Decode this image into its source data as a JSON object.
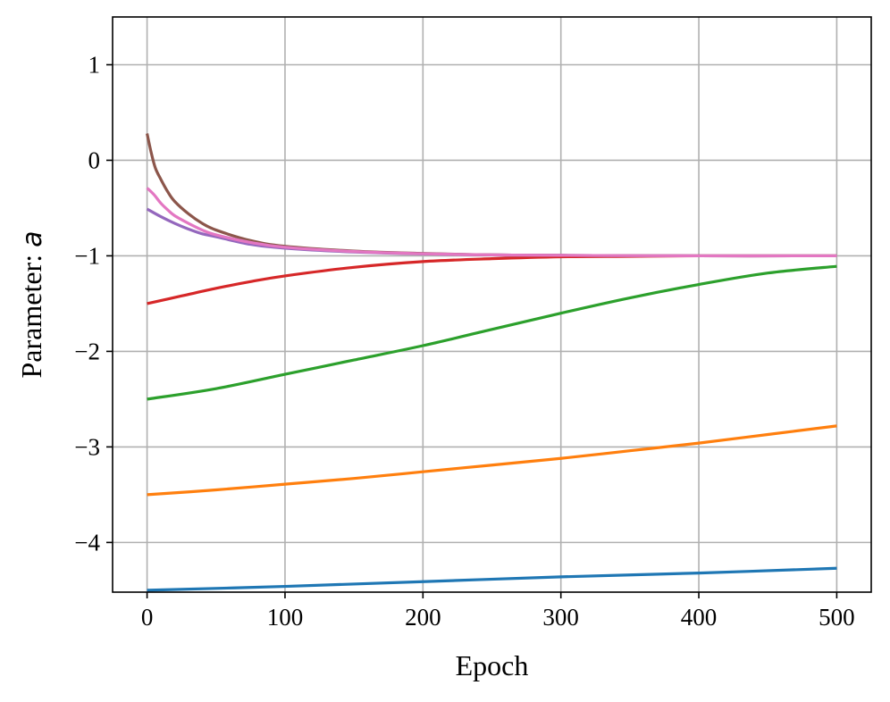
{
  "chart_data": {
    "type": "line",
    "title": "",
    "xlabel": "Epoch",
    "ylabel_prefix": "Parameter: ",
    "ylabel_symbol": "a",
    "xlim": [
      -25,
      525
    ],
    "ylim": [
      -4.52,
      1.5
    ],
    "grid": true,
    "x_ticks": [
      0,
      100,
      200,
      300,
      400,
      500
    ],
    "x_tick_labels": [
      "0",
      "100",
      "200",
      "300",
      "400",
      "500"
    ],
    "y_ticks": [
      1,
      0,
      -1,
      -2,
      -3,
      -4
    ],
    "y_tick_labels": [
      "1",
      "0",
      "−1",
      "−2",
      "−3",
      "−4"
    ],
    "series": [
      {
        "color": "#1f77b4",
        "x": [
          0,
          100,
          200,
          300,
          400,
          500
        ],
        "y": [
          -4.5,
          -4.46,
          -4.41,
          -4.36,
          -4.32,
          -4.27
        ]
      },
      {
        "color": "#ff7f0e",
        "x": [
          0,
          50,
          100,
          150,
          200,
          250,
          300,
          350,
          400,
          450,
          500
        ],
        "y": [
          -3.5,
          -3.45,
          -3.39,
          -3.33,
          -3.26,
          -3.19,
          -3.12,
          -3.04,
          -2.96,
          -2.87,
          -2.78
        ]
      },
      {
        "color": "#2ca02c",
        "x": [
          0,
          50,
          100,
          150,
          200,
          250,
          300,
          350,
          400,
          450,
          500
        ],
        "y": [
          -2.5,
          -2.39,
          -2.24,
          -2.09,
          -1.94,
          -1.77,
          -1.6,
          -1.44,
          -1.3,
          -1.18,
          -1.11
        ]
      },
      {
        "color": "#d62728",
        "x": [
          0,
          25,
          50,
          75,
          100,
          150,
          200,
          250,
          300,
          350,
          400,
          450,
          500
        ],
        "y": [
          -1.5,
          -1.42,
          -1.34,
          -1.27,
          -1.21,
          -1.12,
          -1.06,
          -1.03,
          -1.01,
          -1.005,
          -1.0,
          -1.0,
          -1.0
        ]
      },
      {
        "color": "#9467bd",
        "x": [
          0,
          10,
          20,
          30,
          40,
          50,
          75,
          100,
          150,
          200,
          250,
          300,
          400,
          500
        ],
        "y": [
          -0.51,
          -0.59,
          -0.66,
          -0.72,
          -0.77,
          -0.8,
          -0.88,
          -0.92,
          -0.96,
          -0.98,
          -0.99,
          -0.995,
          -1.0,
          -1.0
        ]
      },
      {
        "color": "#8c564b",
        "x": [
          0,
          3,
          6,
          10,
          15,
          20,
          30,
          40,
          50,
          75,
          100,
          150,
          200,
          250,
          300,
          400,
          500
        ],
        "y": [
          0.28,
          0.08,
          -0.08,
          -0.2,
          -0.33,
          -0.43,
          -0.56,
          -0.66,
          -0.73,
          -0.84,
          -0.9,
          -0.95,
          -0.975,
          -0.99,
          -0.995,
          -1.0,
          -1.0
        ]
      },
      {
        "color": "#e377c2",
        "x": [
          0,
          5,
          10,
          15,
          20,
          30,
          40,
          50,
          75,
          100,
          150,
          200,
          250,
          300,
          400,
          500
        ],
        "y": [
          -0.29,
          -0.36,
          -0.45,
          -0.52,
          -0.58,
          -0.66,
          -0.73,
          -0.78,
          -0.86,
          -0.91,
          -0.955,
          -0.978,
          -0.99,
          -0.995,
          -1.0,
          -1.0
        ]
      }
    ]
  }
}
